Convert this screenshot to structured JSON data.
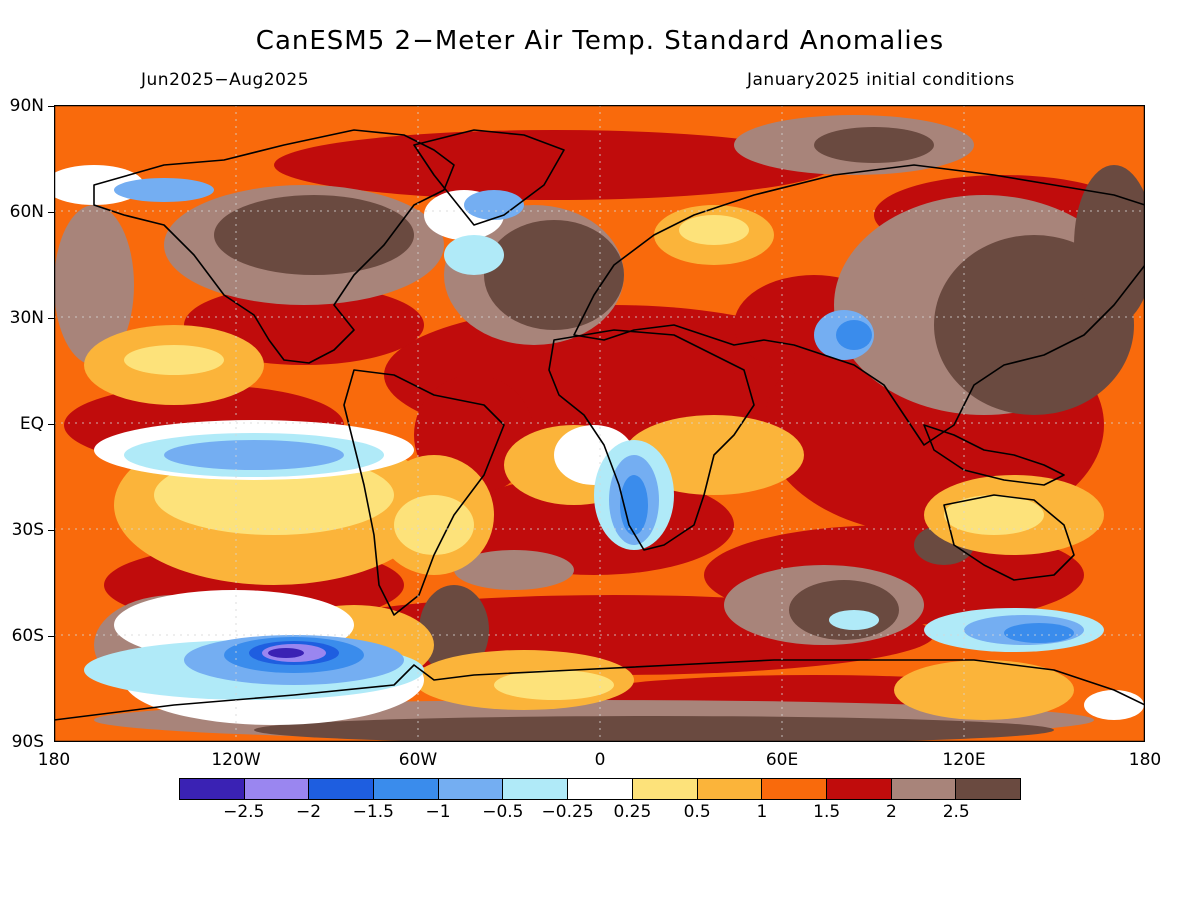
{
  "title": "CanESM5 2−Meter Air Temp. Standard Anomalies",
  "subtitle_left": "Jun2025−Aug2025",
  "subtitle_right": "January2025 initial conditions",
  "lat_labels": [
    "90N",
    "60N",
    "30N",
    "EQ",
    "30S",
    "60S",
    "90S"
  ],
  "lon_labels": [
    "180",
    "120W",
    "60W",
    "0",
    "60E",
    "120E",
    "180"
  ],
  "colorbar": {
    "colors": [
      "#3a22b4",
      "#9a86f0",
      "#1e5ee0",
      "#3a8cec",
      "#74aef2",
      "#b0eaf8",
      "#ffffff",
      "#fde27a",
      "#fbb43a",
      "#f96a0c",
      "#c00c0c",
      "#a8847a",
      "#6a4a40"
    ],
    "labels": [
      "−2.5",
      "−2",
      "−1.5",
      "−1",
      "−0.5",
      "−0.25",
      "0.25",
      "0.5",
      "1",
      "1.5",
      "2",
      "2.5"
    ]
  }
}
